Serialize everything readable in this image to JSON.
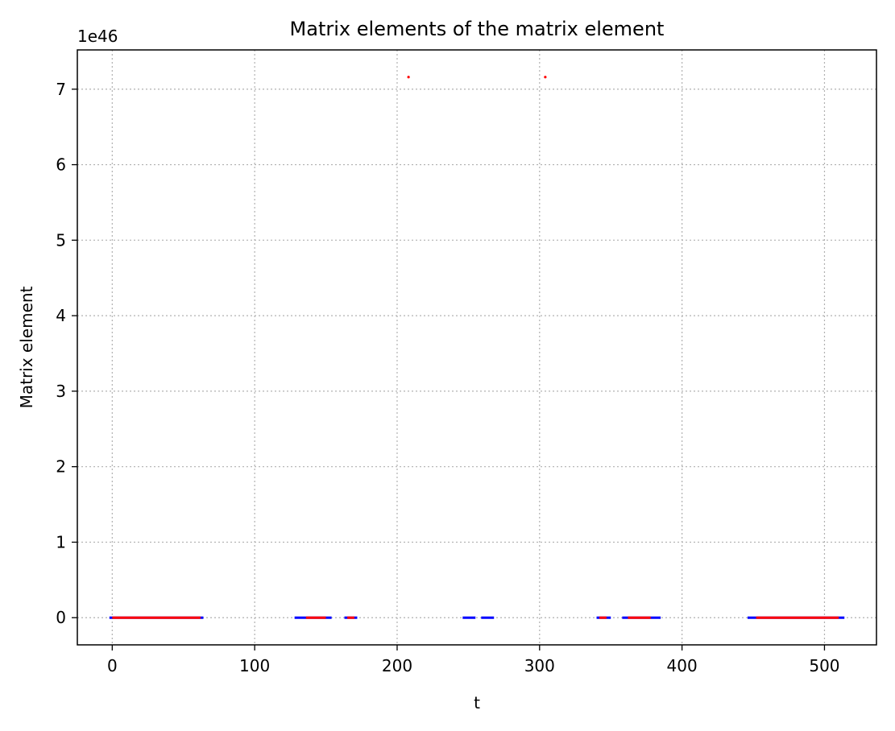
{
  "chart_data": {
    "type": "scatter",
    "title": "Matrix elements of the matrix element",
    "xlabel": "t",
    "ylabel": "Matrix element",
    "y_offset_label": "1e46",
    "y_scale": 1e+46,
    "xlim": [
      -24.5,
      536.5
    ],
    "ylim": [
      -0.36,
      7.52
    ],
    "x_ticks": [
      0,
      100,
      200,
      300,
      400,
      500
    ],
    "y_ticks": [
      0,
      1,
      2,
      3,
      4,
      5,
      6,
      7
    ],
    "grid": true,
    "legend": "none",
    "colors": {
      "series_blue": "#0000ff",
      "series_red": "#ff0000",
      "grid": "#b0b0b0"
    },
    "series": [
      {
        "color": "#0000ff",
        "segments": [
          {
            "from": -2,
            "to": 64,
            "value": 0
          },
          {
            "from": 128,
            "to": 154,
            "value": 0
          },
          {
            "from": 163,
            "to": 172,
            "value": 0
          },
          {
            "from": 246,
            "to": 255,
            "value": 0
          },
          {
            "from": 259,
            "to": 268,
            "value": 0
          },
          {
            "from": 340,
            "to": 350,
            "value": 0
          },
          {
            "from": 358,
            "to": 385,
            "value": 0
          },
          {
            "from": 446,
            "to": 514,
            "value": 0
          }
        ]
      },
      {
        "color": "#ff0000",
        "segments": [
          {
            "from": 0,
            "to": 62,
            "value": 0
          },
          {
            "from": 136,
            "to": 150,
            "value": 0
          },
          {
            "from": 165,
            "to": 170,
            "value": 0
          },
          {
            "from": 342,
            "to": 347,
            "value": 0
          },
          {
            "from": 362,
            "to": 378,
            "value": 0
          },
          {
            "from": 452,
            "to": 510,
            "value": 0
          }
        ],
        "points": [
          {
            "x": 208,
            "y": 7.16
          },
          {
            "x": 304,
            "y": 7.16
          }
        ]
      }
    ]
  }
}
